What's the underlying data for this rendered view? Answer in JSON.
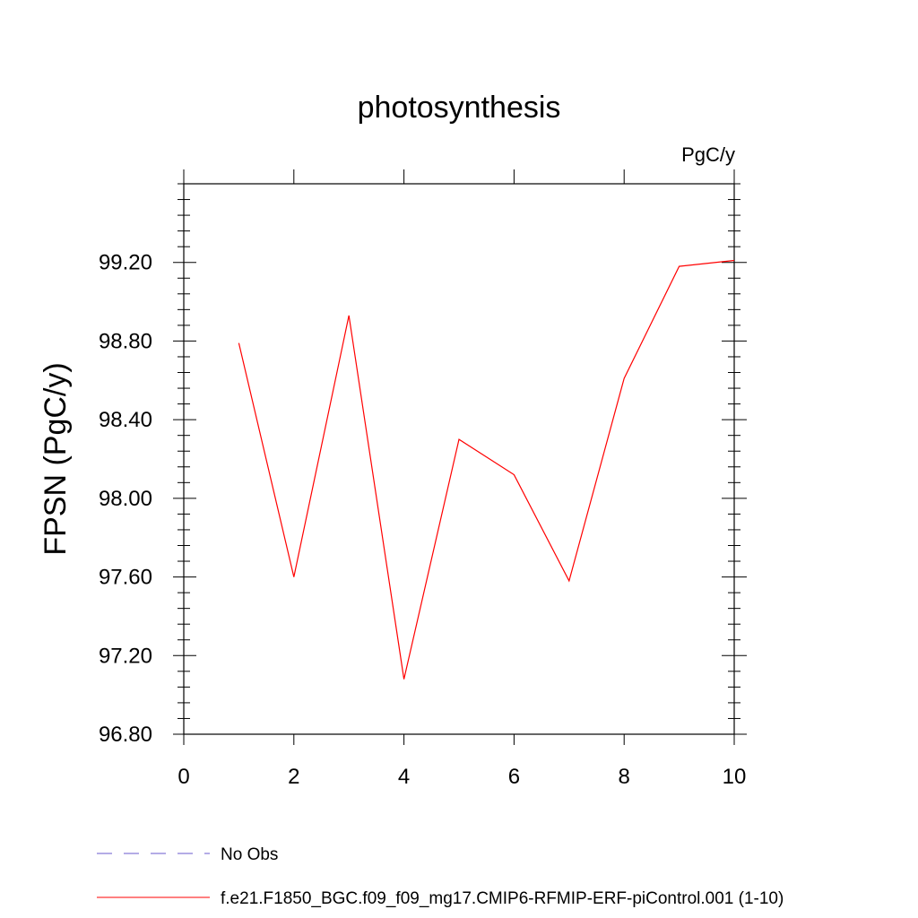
{
  "chart_data": {
    "type": "line",
    "title": "photosynthesis",
    "units_label": "PgC/y",
    "ylabel": "FPSN  (PgC/y)",
    "xlabel": "",
    "xlim": [
      0,
      10
    ],
    "ylim": [
      96.8,
      99.6
    ],
    "xticks": [
      0,
      2,
      4,
      6,
      8,
      10
    ],
    "xtick_labels": [
      "0",
      "2",
      "4",
      "6",
      "8",
      "10"
    ],
    "yticks": [
      96.8,
      97.2,
      97.6,
      98.0,
      98.4,
      98.8,
      99.2
    ],
    "ytick_labels": [
      "96.80",
      "97.20",
      "97.60",
      "98.00",
      "98.40",
      "98.80",
      "99.20"
    ],
    "grid": false,
    "legend_position": "bottom",
    "series": [
      {
        "name": "f.e21.F1850_BGC.f09_f09_mg17.CMIP6-RFMIP-ERF-piControl.001 (1-10)",
        "color": "#ff0000",
        "style": "solid",
        "x": [
          1,
          2,
          3,
          4,
          5,
          6,
          7,
          8,
          9,
          10
        ],
        "y": [
          98.79,
          97.6,
          98.93,
          97.08,
          98.3,
          98.12,
          97.58,
          98.61,
          99.18,
          99.21
        ]
      }
    ],
    "legend": [
      {
        "label": "No Obs",
        "color": "#6a5acd",
        "style": "dashed"
      },
      {
        "label": "f.e21.F1850_BGC.f09_f09_mg17.CMIP6-RFMIP-ERF-piControl.001 (1-10)",
        "color": "#ff0000",
        "style": "solid"
      }
    ]
  }
}
